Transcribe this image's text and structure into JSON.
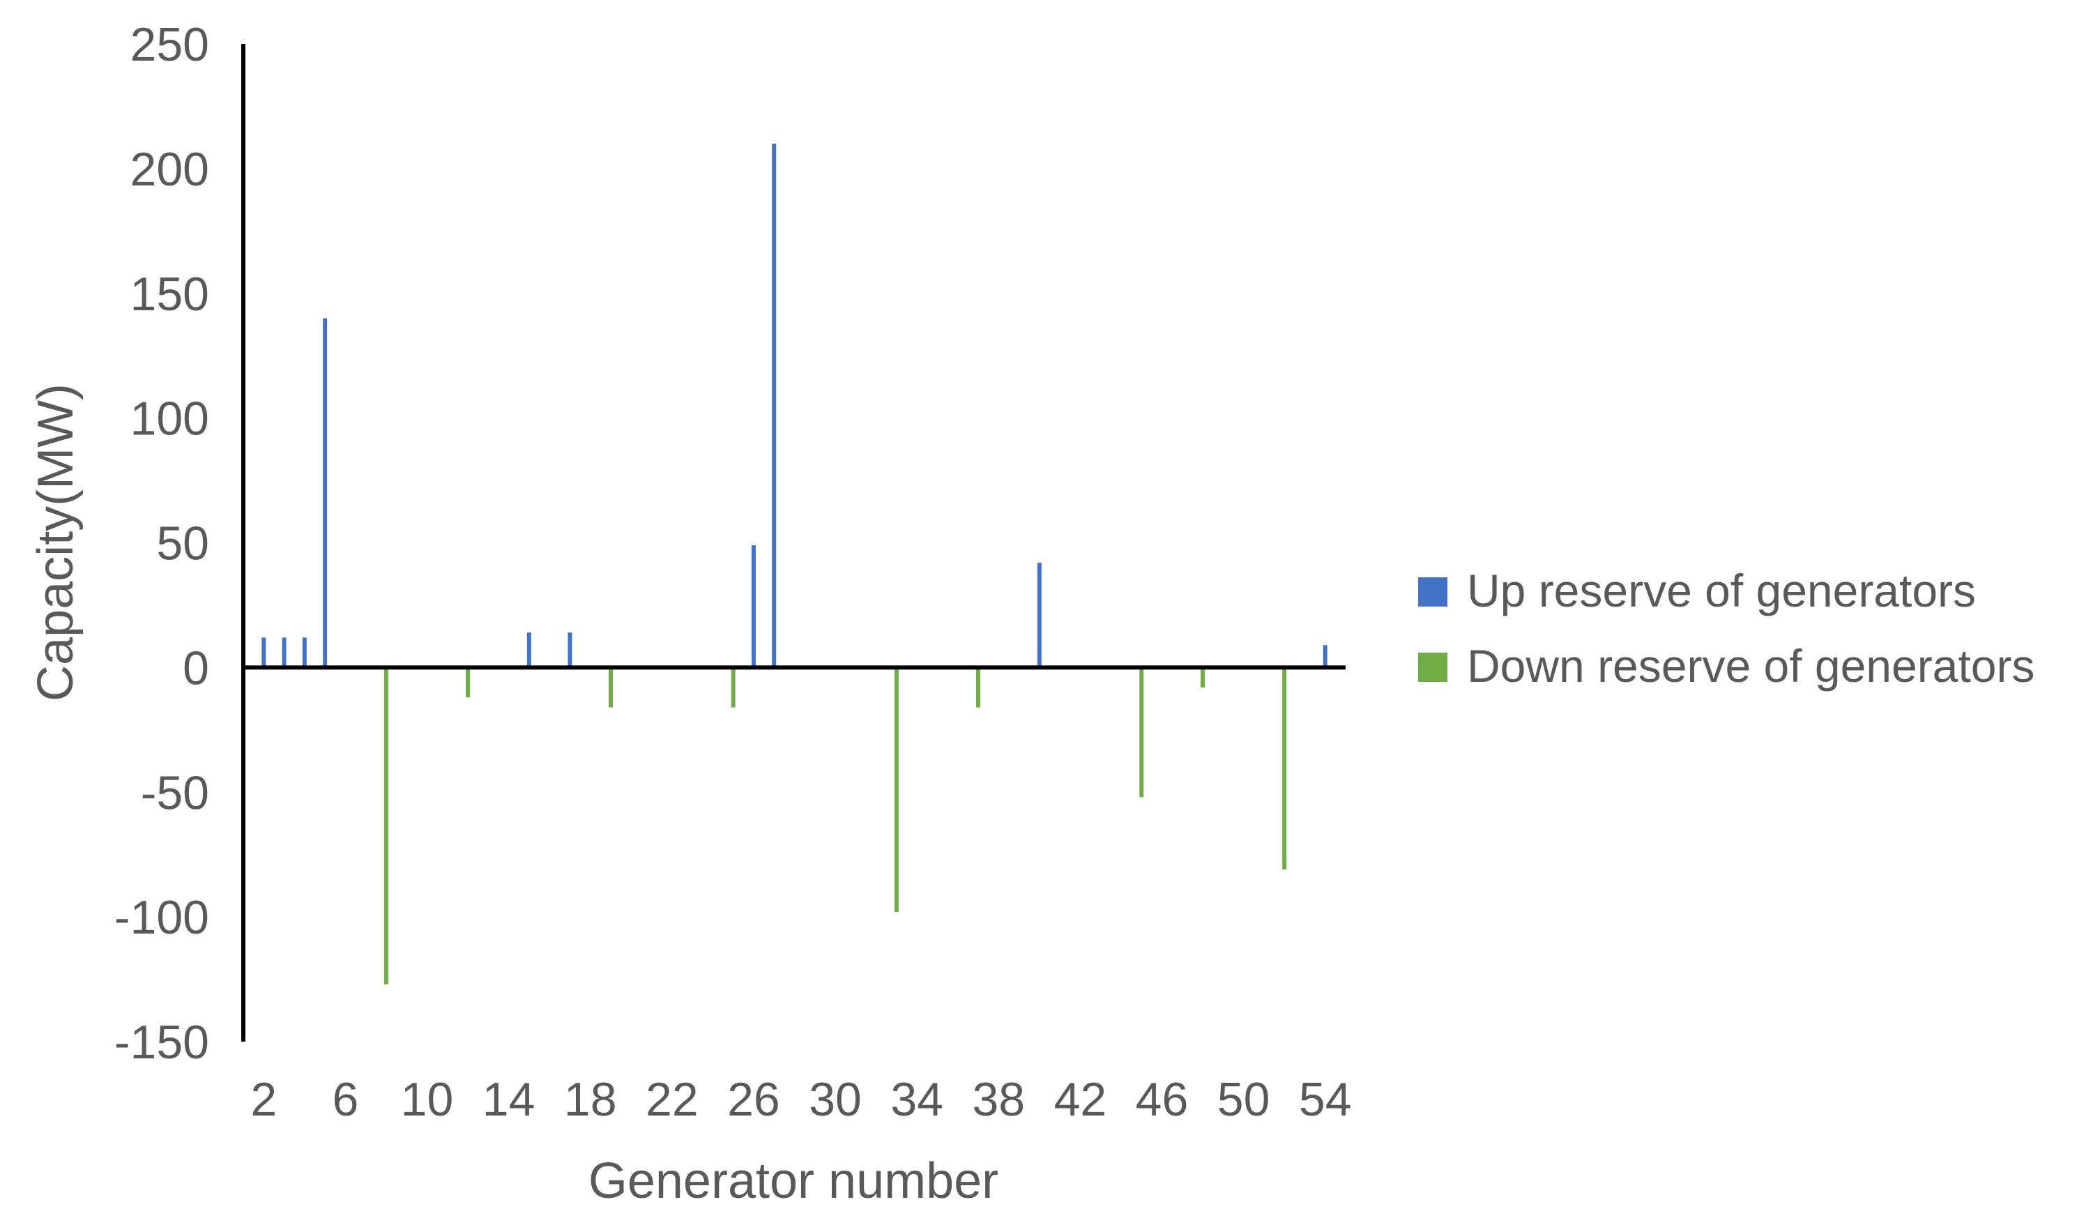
{
  "chart_data": {
    "type": "bar",
    "title": "",
    "xlabel": "Generator number",
    "ylabel": "Capacity(MW)",
    "ylim": [
      -150,
      250
    ],
    "yticks": [
      250,
      200,
      150,
      100,
      50,
      0,
      -50,
      -100,
      -150
    ],
    "xlim": [
      1,
      55
    ],
    "xticks": [
      2,
      6,
      10,
      14,
      18,
      22,
      26,
      30,
      34,
      38,
      42,
      46,
      50,
      54
    ],
    "grid": false,
    "legend_position": "right",
    "series": [
      {
        "name": "Up reserve of generators",
        "color": "#4472C4",
        "x": [
          2,
          3,
          4,
          5,
          15,
          17,
          26,
          27,
          40,
          54
        ],
        "values": [
          12,
          12,
          12,
          140,
          14,
          14,
          49,
          210,
          42,
          9
        ]
      },
      {
        "name": "Down reserve of generators",
        "color": "#70AD47",
        "x": [
          8,
          12,
          19,
          25,
          33,
          37,
          45,
          48,
          52
        ],
        "values": [
          -127,
          -12,
          -16,
          -16,
          -98,
          -16,
          -52,
          -8,
          -81
        ]
      }
    ]
  }
}
